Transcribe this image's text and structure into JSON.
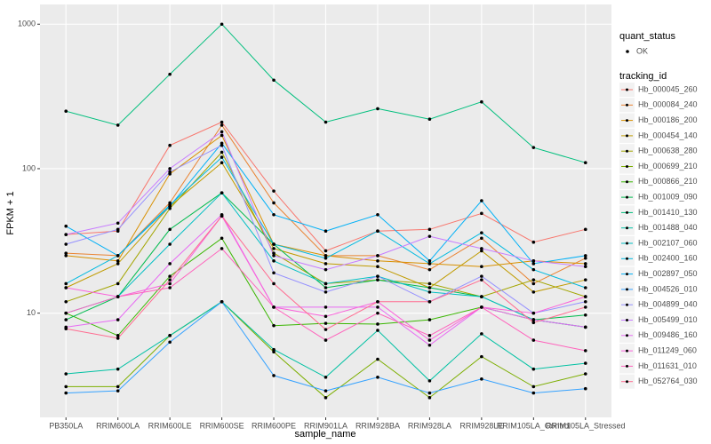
{
  "chart_data": {
    "type": "line",
    "x_label": "sample_name",
    "y_label": "FPKM + 1",
    "log_y": true,
    "grid": true,
    "categories": [
      "PB350LA",
      "RRIM600LA",
      "RRIM600LE",
      "RRIM600SE",
      "RRIM600PE",
      "RRIM901LA",
      "RRIM928BA",
      "RRIM928LA",
      "RRIM928LE",
      "RRIM105LA_Control",
      "RRIM105LA_Stressed"
    ],
    "ylim": [
      1.9,
      1370
    ],
    "yticks": [
      10,
      100,
      1000
    ],
    "point_legend": {
      "title": "quant_status",
      "labels": [
        "OK"
      ]
    },
    "legend_title": "tracking_id",
    "legend_position": "right",
    "series": [
      {
        "name": "Hb_000045_260",
        "color": "#F8766D",
        "values": [
          35,
          37,
          145,
          210,
          70,
          27,
          37,
          38,
          49,
          31,
          38
        ]
      },
      {
        "name": "Hb_000084_240",
        "color": "#EA8331",
        "values": [
          26,
          25,
          58,
          200,
          58,
          25,
          25,
          20,
          33,
          16,
          24
        ]
      },
      {
        "name": "Hb_000186_200",
        "color": "#D89000",
        "values": [
          25,
          23,
          92,
          170,
          30,
          25,
          23,
          22,
          21,
          23,
          22
        ]
      },
      {
        "name": "Hb_000454_140",
        "color": "#C09B00",
        "values": [
          15,
          22,
          55,
          110,
          28,
          22,
          21,
          15,
          27,
          14,
          17
        ]
      },
      {
        "name": "Hb_000638_280",
        "color": "#A3A500",
        "values": [
          12,
          16,
          53,
          130,
          26,
          16,
          17,
          16,
          13,
          17,
          13
        ]
      },
      {
        "name": "Hb_000699_210",
        "color": "#7CAE00",
        "values": [
          3.1,
          3.1,
          7,
          12,
          5.4,
          2.6,
          4.8,
          2.6,
          5,
          3.1,
          3.8
        ]
      },
      {
        "name": "Hb_000866_210",
        "color": "#39B600",
        "values": [
          10,
          7,
          18,
          33,
          8.2,
          8.5,
          8.4,
          9,
          11,
          9,
          8
        ]
      },
      {
        "name": "Hb_001009_090",
        "color": "#00BB4E",
        "values": [
          9,
          13,
          38,
          68,
          30,
          15,
          17,
          15,
          13,
          9,
          9.7
        ]
      },
      {
        "name": "Hb_001410_130",
        "color": "#00BF7D",
        "values": [
          250,
          200,
          450,
          1000,
          410,
          210,
          260,
          220,
          290,
          140,
          110
        ]
      },
      {
        "name": "Hb_001488_040",
        "color": "#00C1A3",
        "values": [
          3.8,
          4.1,
          7,
          12,
          5.6,
          3.6,
          7.6,
          3.4,
          7.2,
          4.1,
          4.5
        ]
      },
      {
        "name": "Hb_002107_060",
        "color": "#00BFC4",
        "values": [
          10,
          13,
          30,
          68,
          23,
          16,
          18,
          14,
          13,
          9,
          8
        ]
      },
      {
        "name": "Hb_002400_160",
        "color": "#00BAE0",
        "values": [
          16,
          25,
          56,
          120,
          30,
          24,
          37,
          22,
          36,
          20,
          15
        ]
      },
      {
        "name": "Hb_002897_050",
        "color": "#00B0F6",
        "values": [
          40,
          25,
          55,
          150,
          48,
          37,
          48,
          23,
          60,
          22,
          25
        ]
      },
      {
        "name": "Hb_004526_010",
        "color": "#35A2FF",
        "values": [
          2.8,
          2.9,
          6.3,
          12,
          3.7,
          2.9,
          3.6,
          2.8,
          3.5,
          2.8,
          3.0
        ]
      },
      {
        "name": "Hb_004899_040",
        "color": "#9590FF",
        "values": [
          30,
          38,
          95,
          145,
          19,
          14,
          18,
          12,
          18,
          10,
          12
        ]
      },
      {
        "name": "Hb_005499_010",
        "color": "#C77CFF",
        "values": [
          35,
          42,
          100,
          180,
          25,
          20,
          25,
          34,
          28,
          23,
          21
        ]
      },
      {
        "name": "Hb_009486_160",
        "color": "#E76BF3",
        "values": [
          8,
          9,
          22,
          48,
          11,
          11,
          11,
          6,
          11,
          9,
          8
        ]
      },
      {
        "name": "Hb_011249_060",
        "color": "#FA62DB",
        "values": [
          15,
          13,
          16,
          47,
          11,
          9.5,
          12,
          6.5,
          11,
          10,
          13
        ]
      },
      {
        "name": "Hb_011631_010",
        "color": "#FF62BC",
        "values": [
          10,
          13,
          15,
          28,
          11,
          6.5,
          10,
          7,
          11,
          6.5,
          5.5
        ]
      },
      {
        "name": "Hb_052764_030",
        "color": "#FF6C91",
        "values": [
          7.8,
          6.7,
          17,
          47,
          16,
          7.7,
          12,
          12,
          17,
          8.6,
          11
        ]
      }
    ]
  }
}
